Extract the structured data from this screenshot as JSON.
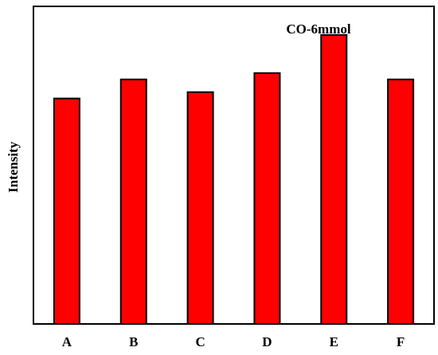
{
  "chart_data": {
    "type": "bar",
    "annotation": "CO-6mmol",
    "ylabel": "Intensity",
    "categories": [
      "A",
      "B",
      "C",
      "D",
      "E",
      "F"
    ],
    "values": [
      71,
      77,
      73,
      79,
      91,
      77
    ],
    "color": "#ff0000",
    "ylim": [
      0,
      100
    ]
  }
}
